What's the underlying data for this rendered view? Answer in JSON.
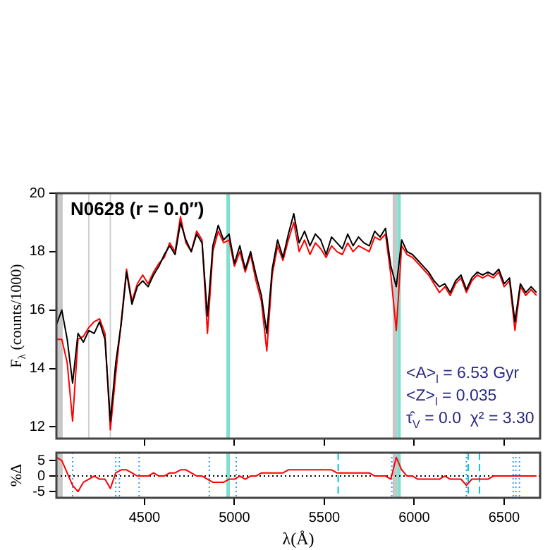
{
  "chart_data": [
    {
      "type": "line",
      "ylabel": "F$_{λ}$ (counts/1000)",
      "annotations": [
        "N0628 (r = 0.0″)",
        "<A>$_{l}$ = 6.53 Gyr",
        "<Z>$_{l}$ = 0.035",
        "τ̂$_{V}$ = 0.0  χ² = 3.30"
      ],
      "x": [
        4010,
        4040,
        4070,
        4100,
        4130,
        4160,
        4190,
        4220,
        4250,
        4280,
        4310,
        4340,
        4370,
        4400,
        4430,
        4460,
        4490,
        4520,
        4550,
        4580,
        4610,
        4640,
        4670,
        4700,
        4730,
        4760,
        4790,
        4820,
        4850,
        4880,
        4910,
        4940,
        4970,
        5000,
        5030,
        5060,
        5090,
        5120,
        5150,
        5180,
        5210,
        5240,
        5270,
        5300,
        5330,
        5360,
        5390,
        5420,
        5450,
        5480,
        5510,
        5540,
        5570,
        5600,
        5630,
        5660,
        5690,
        5720,
        5750,
        5780,
        5810,
        5840,
        5870,
        5900,
        5930,
        5960,
        5990,
        6020,
        6050,
        6080,
        6110,
        6140,
        6170,
        6200,
        6230,
        6260,
        6290,
        6320,
        6350,
        6380,
        6410,
        6440,
        6470,
        6500,
        6530,
        6560,
        6590,
        6620,
        6650,
        6680
      ],
      "series": [
        {
          "color": "#000000",
          "values": [
            15.5,
            16.0,
            15.0,
            13.5,
            15.2,
            14.9,
            15.3,
            15.2,
            15.6,
            15.0,
            12.2,
            14.2,
            15.5,
            17.3,
            16.2,
            16.8,
            17.0,
            16.8,
            17.2,
            17.5,
            17.9,
            18.2,
            17.9,
            19.0,
            18.4,
            18.0,
            18.6,
            18.3,
            15.8,
            18.2,
            18.9,
            18.4,
            18.6,
            17.6,
            18.2,
            17.4,
            18.0,
            17.2,
            16.5,
            15.2,
            17.4,
            18.4,
            17.8,
            18.6,
            19.3,
            18.3,
            18.7,
            18.2,
            18.6,
            18.4,
            17.9,
            18.5,
            18.3,
            18.1,
            18.6,
            18.2,
            18.5,
            18.3,
            18.2,
            18.7,
            18.5,
            18.8,
            17.5,
            16.8,
            18.4,
            18.0,
            17.9,
            17.7,
            17.5,
            17.3,
            17.0,
            16.8,
            16.9,
            16.6,
            17.0,
            17.2,
            16.7,
            17.1,
            17.3,
            17.2,
            17.3,
            17.2,
            17.4,
            16.9,
            17.1,
            15.6,
            16.9,
            16.6,
            16.8,
            16.6
          ]
        },
        {
          "color": "#ff0000",
          "values": [
            15.0,
            15.0,
            14.2,
            12.2,
            15.0,
            15.1,
            15.4,
            15.6,
            15.7,
            15.2,
            11.9,
            13.8,
            15.6,
            17.4,
            16.3,
            16.9,
            17.2,
            16.9,
            17.3,
            17.6,
            17.8,
            18.3,
            18.0,
            19.2,
            18.3,
            18.0,
            18.7,
            18.4,
            15.2,
            18.0,
            18.7,
            18.3,
            18.4,
            17.5,
            18.0,
            17.3,
            17.9,
            17.0,
            16.3,
            14.6,
            17.2,
            18.2,
            17.7,
            18.4,
            19.0,
            18.0,
            18.4,
            17.9,
            18.3,
            18.1,
            17.8,
            18.2,
            18.0,
            17.9,
            18.3,
            18.0,
            18.2,
            18.1,
            18.0,
            18.5,
            18.4,
            18.6,
            17.2,
            15.3,
            18.2,
            17.9,
            17.8,
            17.6,
            17.4,
            17.2,
            16.9,
            16.6,
            16.8,
            16.5,
            16.9,
            17.1,
            16.6,
            17.0,
            17.2,
            17.1,
            17.2,
            17.1,
            17.3,
            16.8,
            17.0,
            15.3,
            16.8,
            16.5,
            16.7,
            16.5
          ]
        }
      ],
      "xlim": [
        4010,
        6700
      ],
      "xticks": [
        4500,
        5000,
        5500,
        6000,
        6500
      ],
      "ylim": [
        11.6,
        20
      ],
      "yticks": [
        12,
        14,
        16,
        18,
        20
      ],
      "tick_labels": "y",
      "grid": false,
      "legend": false,
      "marker": "none",
      "bands": [
        {
          "axis": "x",
          "from": 4010,
          "to": 4045,
          "color": "#c8c8c8"
        },
        {
          "axis": "x",
          "from": 4955,
          "to": 4975,
          "color": "#7fe0d0"
        },
        {
          "axis": "x",
          "from": 5880,
          "to": 5905,
          "color": "#c8c8c8"
        },
        {
          "axis": "x",
          "from": 5905,
          "to": 5925,
          "color": "#7fe0d0"
        }
      ],
      "ref_lines": [
        {
          "axis": "x",
          "value": 4190,
          "color": "#d0d0d0",
          "line_style": "solid"
        },
        {
          "axis": "x",
          "value": 4310,
          "color": "#d0d0d0",
          "line_style": "solid"
        }
      ]
    },
    {
      "type": "line",
      "xlabel": "λ(Å)",
      "ylabel": "%Δ",
      "x": [
        4010,
        4040,
        4070,
        4100,
        4130,
        4160,
        4190,
        4220,
        4250,
        4280,
        4310,
        4340,
        4370,
        4400,
        4430,
        4460,
        4490,
        4520,
        4550,
        4580,
        4610,
        4640,
        4670,
        4700,
        4730,
        4760,
        4790,
        4820,
        4850,
        4880,
        4910,
        4940,
        4970,
        5000,
        5030,
        5060,
        5090,
        5120,
        5150,
        5180,
        5210,
        5240,
        5270,
        5300,
        5330,
        5360,
        5390,
        5420,
        5450,
        5480,
        5510,
        5540,
        5570,
        5600,
        5630,
        5660,
        5690,
        5720,
        5750,
        5780,
        5810,
        5840,
        5870,
        5900,
        5930,
        5960,
        5990,
        6020,
        6050,
        6080,
        6110,
        6140,
        6170,
        6200,
        6230,
        6260,
        6290,
        6320,
        6350,
        6380,
        6410,
        6440,
        6470,
        6500,
        6530,
        6560,
        6590,
        6620,
        6650,
        6680
      ],
      "series": [
        {
          "color": "#ff0000",
          "values": [
            6,
            5,
            1,
            -3,
            -5,
            -2,
            -1,
            0,
            -1,
            -1,
            -4,
            1,
            2,
            2,
            1,
            0,
            0,
            0,
            1,
            0,
            0,
            1,
            1,
            2,
            2,
            1,
            0,
            0,
            -1,
            -2,
            -2,
            -2,
            -1,
            -1,
            0,
            -1,
            0,
            0,
            1,
            1,
            1,
            1,
            1,
            2,
            2,
            2,
            2,
            2,
            2,
            2,
            2,
            2,
            1,
            1,
            1,
            1,
            1,
            1,
            1,
            0,
            0,
            0,
            -1,
            6,
            2,
            0,
            0,
            -1,
            -1,
            -1,
            -1,
            -1,
            0,
            -1,
            -1,
            -1,
            -3,
            -1,
            -1,
            -1,
            -1,
            0,
            0,
            0,
            0,
            0,
            0,
            0,
            0,
            0
          ]
        }
      ],
      "xlim": [
        4010,
        6700
      ],
      "xticks": [
        4500,
        5000,
        5500,
        6000,
        6500
      ],
      "ylim": [
        -7,
        7.5
      ],
      "yticks": [
        -5,
        0,
        5
      ],
      "grid": false,
      "legend": false,
      "marker": "none",
      "bands": [
        {
          "axis": "x",
          "from": 4010,
          "to": 4045,
          "color": "#c8c8c8"
        },
        {
          "axis": "x",
          "from": 4955,
          "to": 4975,
          "color": "#7fe0d0"
        },
        {
          "axis": "x",
          "from": 5880,
          "to": 5905,
          "color": "#c8c8c8"
        },
        {
          "axis": "x",
          "from": 5905,
          "to": 5925,
          "color": "#7fe0d0"
        }
      ],
      "ref_lines": [
        {
          "axis": "y",
          "value": 0,
          "color": "#000000",
          "line_style": "dotted"
        },
        {
          "axis": "x",
          "value": 4100,
          "color": "#3399ff",
          "line_style": "dotted"
        },
        {
          "axis": "x",
          "value": 4340,
          "color": "#3399ff",
          "line_style": "dotted"
        },
        {
          "axis": "x",
          "value": 4360,
          "color": "#3399ff",
          "line_style": "dotted"
        },
        {
          "axis": "x",
          "value": 4470,
          "color": "#3399ff",
          "line_style": "dotted"
        },
        {
          "axis": "x",
          "value": 4860,
          "color": "#3399ff",
          "line_style": "dotted"
        },
        {
          "axis": "x",
          "value": 5010,
          "color": "#3399ff",
          "line_style": "dotted"
        },
        {
          "axis": "x",
          "value": 5577,
          "color": "#00c8e0",
          "line_style": "dashed"
        },
        {
          "axis": "x",
          "value": 5875,
          "color": "#3399ff",
          "line_style": "dotted"
        },
        {
          "axis": "x",
          "value": 6290,
          "color": "#3399ff",
          "line_style": "dotted"
        },
        {
          "axis": "x",
          "value": 6300,
          "color": "#00c8e0",
          "line_style": "dashed"
        },
        {
          "axis": "x",
          "value": 6363,
          "color": "#00c8e0",
          "line_style": "dashed"
        },
        {
          "axis": "x",
          "value": 6550,
          "color": "#3399ff",
          "line_style": "dotted"
        },
        {
          "axis": "x",
          "value": 6565,
          "color": "#3399ff",
          "line_style": "dotted"
        },
        {
          "axis": "x",
          "value": 6585,
          "color": "#3399ff",
          "line_style": "dotted"
        }
      ]
    }
  ]
}
